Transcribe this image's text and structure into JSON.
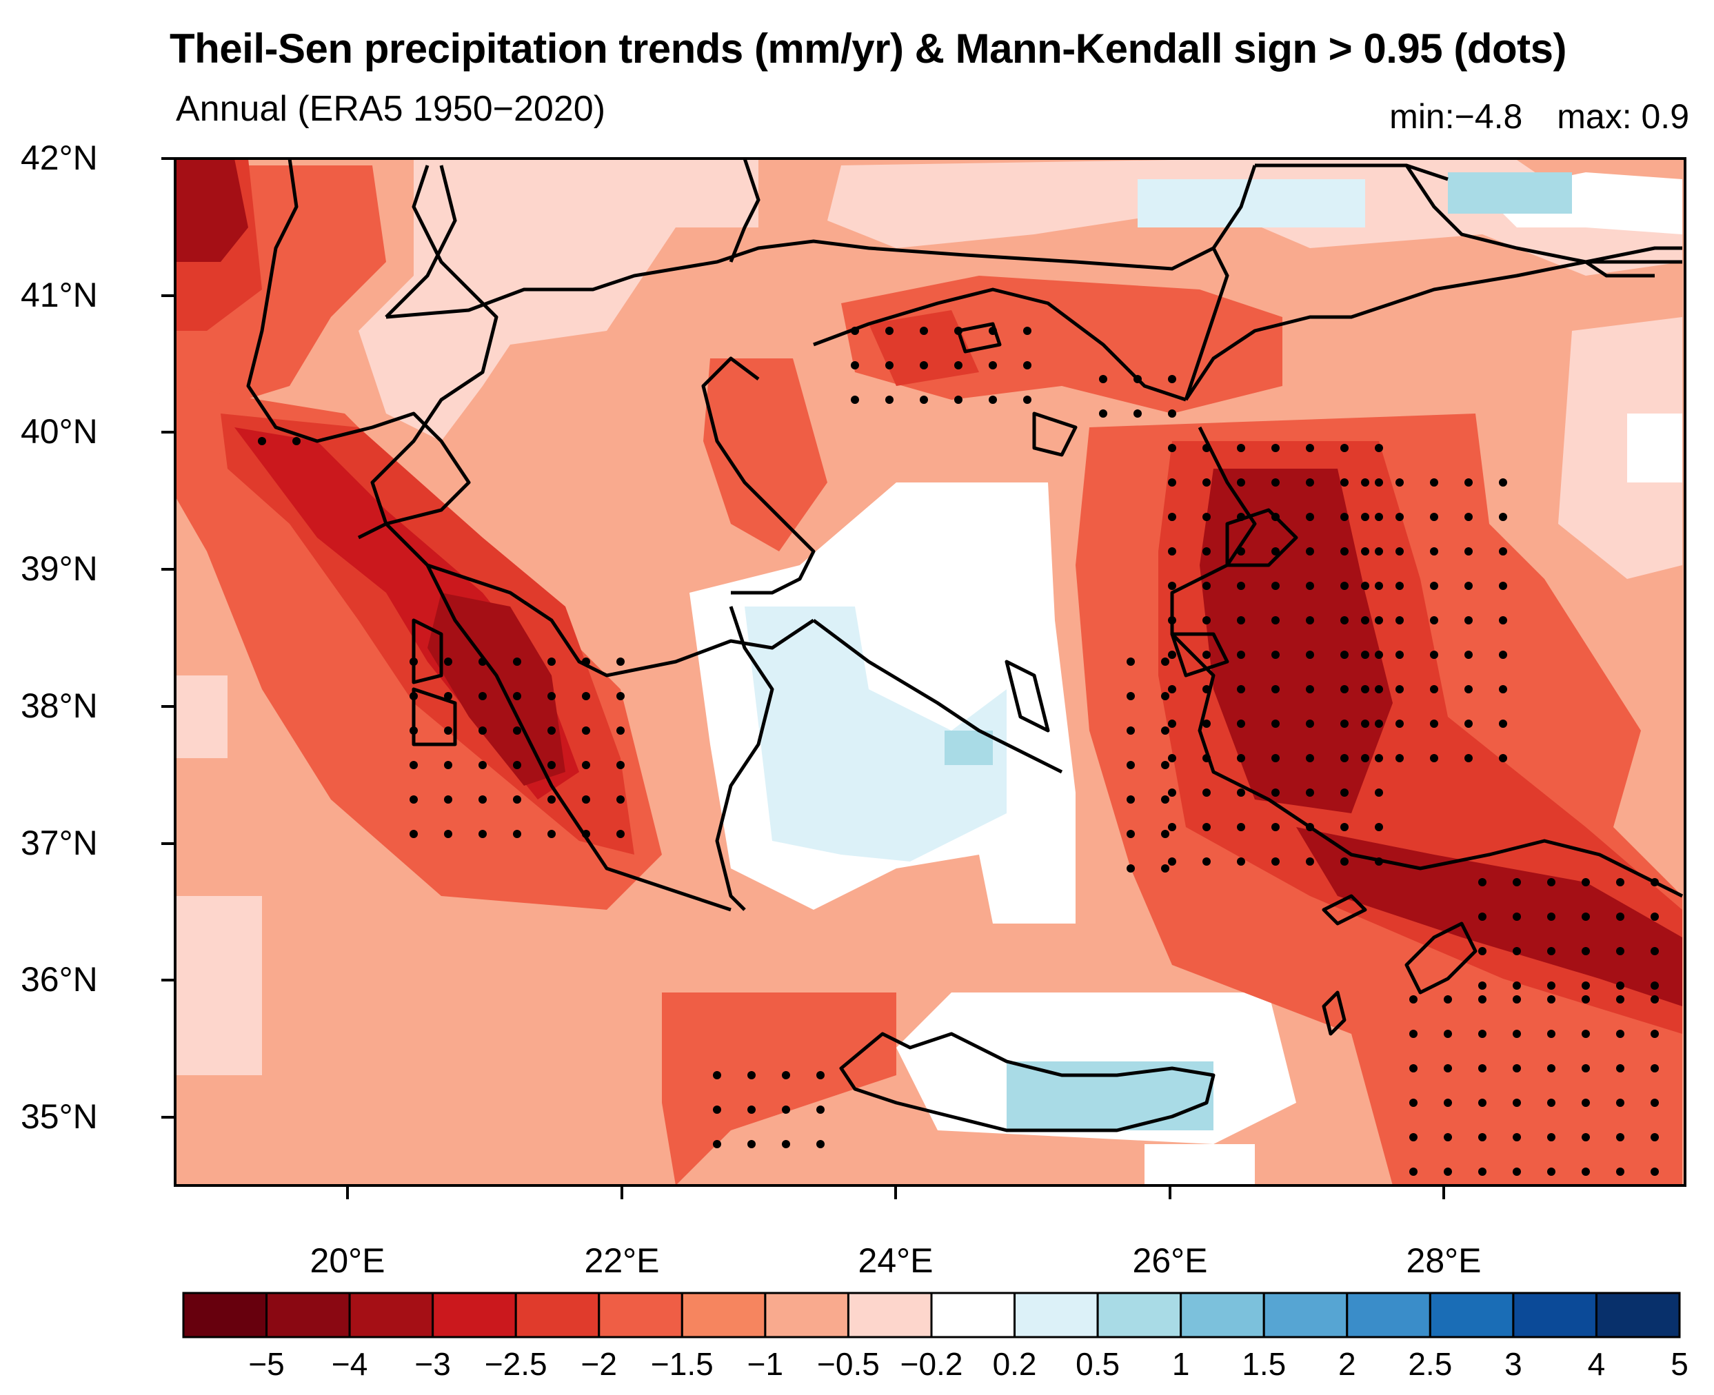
{
  "title": "Theil-Sen precipitation trends (mm/yr) & Mann-Kendall sign > 0.95 (dots)",
  "subtitle": "Annual (ERA5 1950−2020)",
  "stats": {
    "min": "min:−4.8",
    "max": "max: 0.9"
  },
  "axes": {
    "lat_labels": [
      "42°N",
      "41°N",
      "40°N",
      "39°N",
      "38°N",
      "37°N",
      "36°N",
      "35°N"
    ],
    "lon_labels": [
      "20°E",
      "22°E",
      "24°E",
      "26°E",
      "28°E"
    ]
  },
  "colorbar": {
    "labels": [
      "−5",
      "−4",
      "−3",
      "−2.5",
      "−2",
      "−1.5",
      "−1",
      "−0.5",
      "−0.2",
      "0.2",
      "0.5",
      "1",
      "1.5",
      "2",
      "2.5",
      "3",
      "4",
      "5"
    ],
    "colors": [
      "#67000d",
      "#8a0812",
      "#a50f15",
      "#cb181d",
      "#e03b2c",
      "#ef5e45",
      "#f6855f",
      "#f9aa8e",
      "#fdd6cc",
      "#ffffff",
      "#dcf1f8",
      "#a9dbe6",
      "#7cc1dc",
      "#56a5d3",
      "#3a8dc9",
      "#1a6db6",
      "#0b4a98",
      "#08306b"
    ]
  },
  "colors": {
    "land_outline": "#000000",
    "frame": "#000000"
  }
}
